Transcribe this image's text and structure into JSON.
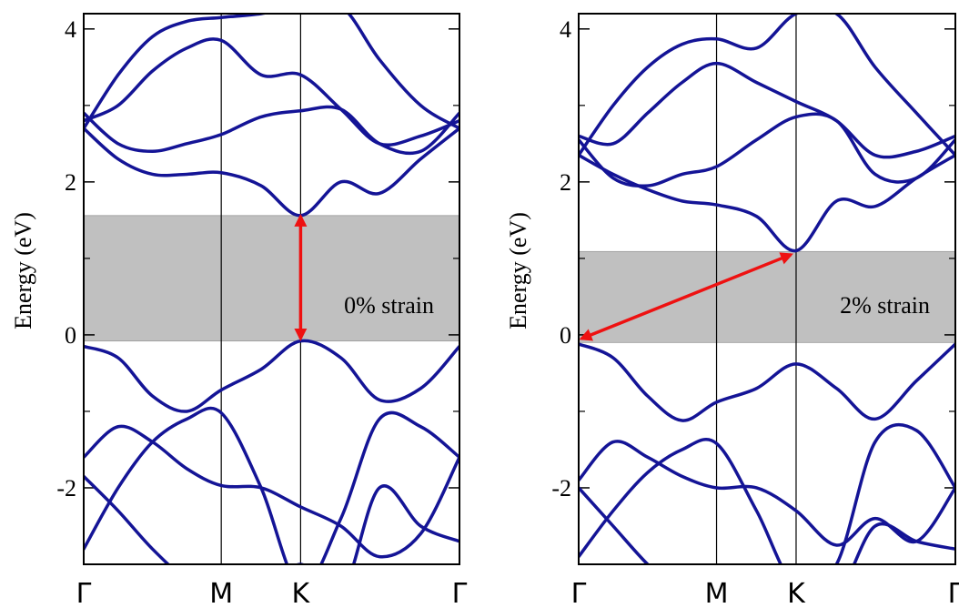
{
  "chart_data": [
    {
      "type": "line",
      "y_label": "Energy (eV)",
      "annotation": "0% strain",
      "x": [
        0,
        0.25,
        0.5,
        0.75,
        1,
        1.29,
        1.577,
        1.87,
        2.15,
        2.45,
        2.732
      ],
      "xlim": [
        0,
        2.732
      ],
      "xticks": [
        {
          "value": 0,
          "label": "Γ"
        },
        {
          "value": 1,
          "label": "M"
        },
        {
          "value": 1.577,
          "label": "K"
        },
        {
          "value": 2.732,
          "label": "Γ"
        }
      ],
      "ylim": [
        -3,
        4.2
      ],
      "yticks": [
        -2,
        0,
        2,
        4
      ],
      "minor_yticks": [
        -3,
        -1,
        1,
        3
      ],
      "shaded_band": {
        "ylim": [
          -0.08,
          1.56
        ],
        "color": "#c0c0c0"
      },
      "arrow": {
        "x": [
          1.577,
          1.577
        ],
        "y": [
          -0.05,
          1.55
        ],
        "color": "#ee1111"
      },
      "series": [
        {
          "color": "#141496",
          "values": [
            -0.15,
            -0.3,
            -0.8,
            -1.0,
            -0.72,
            -0.45,
            -0.08,
            -0.3,
            -0.85,
            -0.7,
            -0.15
          ]
        },
        {
          "color": "#141496",
          "values": [
            -1.6,
            -1.2,
            -1.4,
            -1.75,
            -1.97,
            -2.0,
            -2.25,
            -2.5,
            -2.9,
            -2.6,
            -1.6
          ]
        },
        {
          "color": "#141496",
          "values": [
            -2.8,
            -2.0,
            -1.4,
            -1.1,
            -1.02,
            -2.0,
            -3.3,
            -2.4,
            -1.1,
            -1.2,
            -1.6
          ]
        },
        {
          "color": "#141496",
          "values": [
            -1.85,
            -2.3,
            -2.8,
            -3.2,
            -3.4,
            -3.4,
            -3.0,
            -3.4,
            -2.0,
            -2.5,
            -2.7
          ]
        },
        {
          "color": "#141496",
          "values": [
            2.7,
            2.3,
            2.1,
            2.1,
            2.12,
            1.95,
            1.56,
            2.0,
            1.85,
            2.3,
            2.7
          ]
        },
        {
          "color": "#141496",
          "values": [
            2.9,
            2.5,
            2.4,
            2.5,
            2.62,
            2.85,
            2.93,
            2.95,
            2.5,
            2.4,
            2.9
          ]
        },
        {
          "color": "#141496",
          "values": [
            2.8,
            3.0,
            3.45,
            3.75,
            3.85,
            3.4,
            3.4,
            2.95,
            2.5,
            2.6,
            2.8
          ]
        },
        {
          "color": "#141496",
          "values": [
            2.7,
            3.4,
            3.9,
            4.1,
            4.15,
            4.2,
            4.3,
            4.3,
            3.6,
            3.0,
            2.7
          ]
        }
      ]
    },
    {
      "type": "line",
      "y_label": "Energy (eV)",
      "annotation": "2% strain",
      "x": [
        0,
        0.25,
        0.5,
        0.75,
        1,
        1.29,
        1.577,
        1.87,
        2.15,
        2.45,
        2.732
      ],
      "xlim": [
        0,
        2.732
      ],
      "xticks": [
        {
          "value": 0,
          "label": "Γ"
        },
        {
          "value": 1,
          "label": "M"
        },
        {
          "value": 1.577,
          "label": "K"
        },
        {
          "value": 2.732,
          "label": "Γ"
        }
      ],
      "ylim": [
        -3,
        4.2
      ],
      "yticks": [
        -2,
        0,
        2,
        4
      ],
      "minor_yticks": [
        -3,
        -1,
        1,
        3
      ],
      "shaded_band": {
        "ylim": [
          -0.1,
          1.09
        ],
        "color": "#c0c0c0"
      },
      "arrow": {
        "x": [
          0.02,
          1.54
        ],
        "y": [
          -0.05,
          1.05
        ],
        "color": "#ee1111"
      },
      "series": [
        {
          "color": "#141496",
          "values": [
            -0.12,
            -0.3,
            -0.8,
            -1.12,
            -0.88,
            -0.7,
            -0.38,
            -0.7,
            -1.1,
            -0.6,
            -0.12
          ]
        },
        {
          "color": "#141496",
          "values": [
            -1.9,
            -1.4,
            -1.6,
            -1.85,
            -2.0,
            -2.0,
            -2.3,
            -2.75,
            -2.4,
            -2.7,
            -2.0
          ]
        },
        {
          "color": "#141496",
          "values": [
            -2.9,
            -2.3,
            -1.8,
            -1.5,
            -1.42,
            -2.3,
            -3.3,
            -3.0,
            -1.4,
            -1.25,
            -2.0
          ]
        },
        {
          "color": "#141496",
          "values": [
            -2.0,
            -2.5,
            -3.0,
            -3.4,
            -3.5,
            -3.5,
            -3.2,
            -3.4,
            -2.5,
            -2.7,
            -2.8
          ]
        },
        {
          "color": "#141496",
          "values": [
            2.35,
            2.1,
            1.9,
            1.75,
            1.7,
            1.55,
            1.1,
            1.75,
            1.68,
            2.05,
            2.35
          ]
        },
        {
          "color": "#141496",
          "values": [
            2.55,
            2.05,
            1.95,
            2.1,
            2.2,
            2.55,
            2.85,
            2.8,
            2.1,
            2.05,
            2.55
          ]
        },
        {
          "color": "#141496",
          "values": [
            2.6,
            2.5,
            2.9,
            3.3,
            3.55,
            3.3,
            3.05,
            2.8,
            2.35,
            2.4,
            2.6
          ]
        },
        {
          "color": "#141496",
          "values": [
            2.35,
            3.0,
            3.5,
            3.8,
            3.87,
            3.75,
            4.2,
            4.2,
            3.5,
            2.9,
            2.35
          ]
        }
      ]
    }
  ]
}
